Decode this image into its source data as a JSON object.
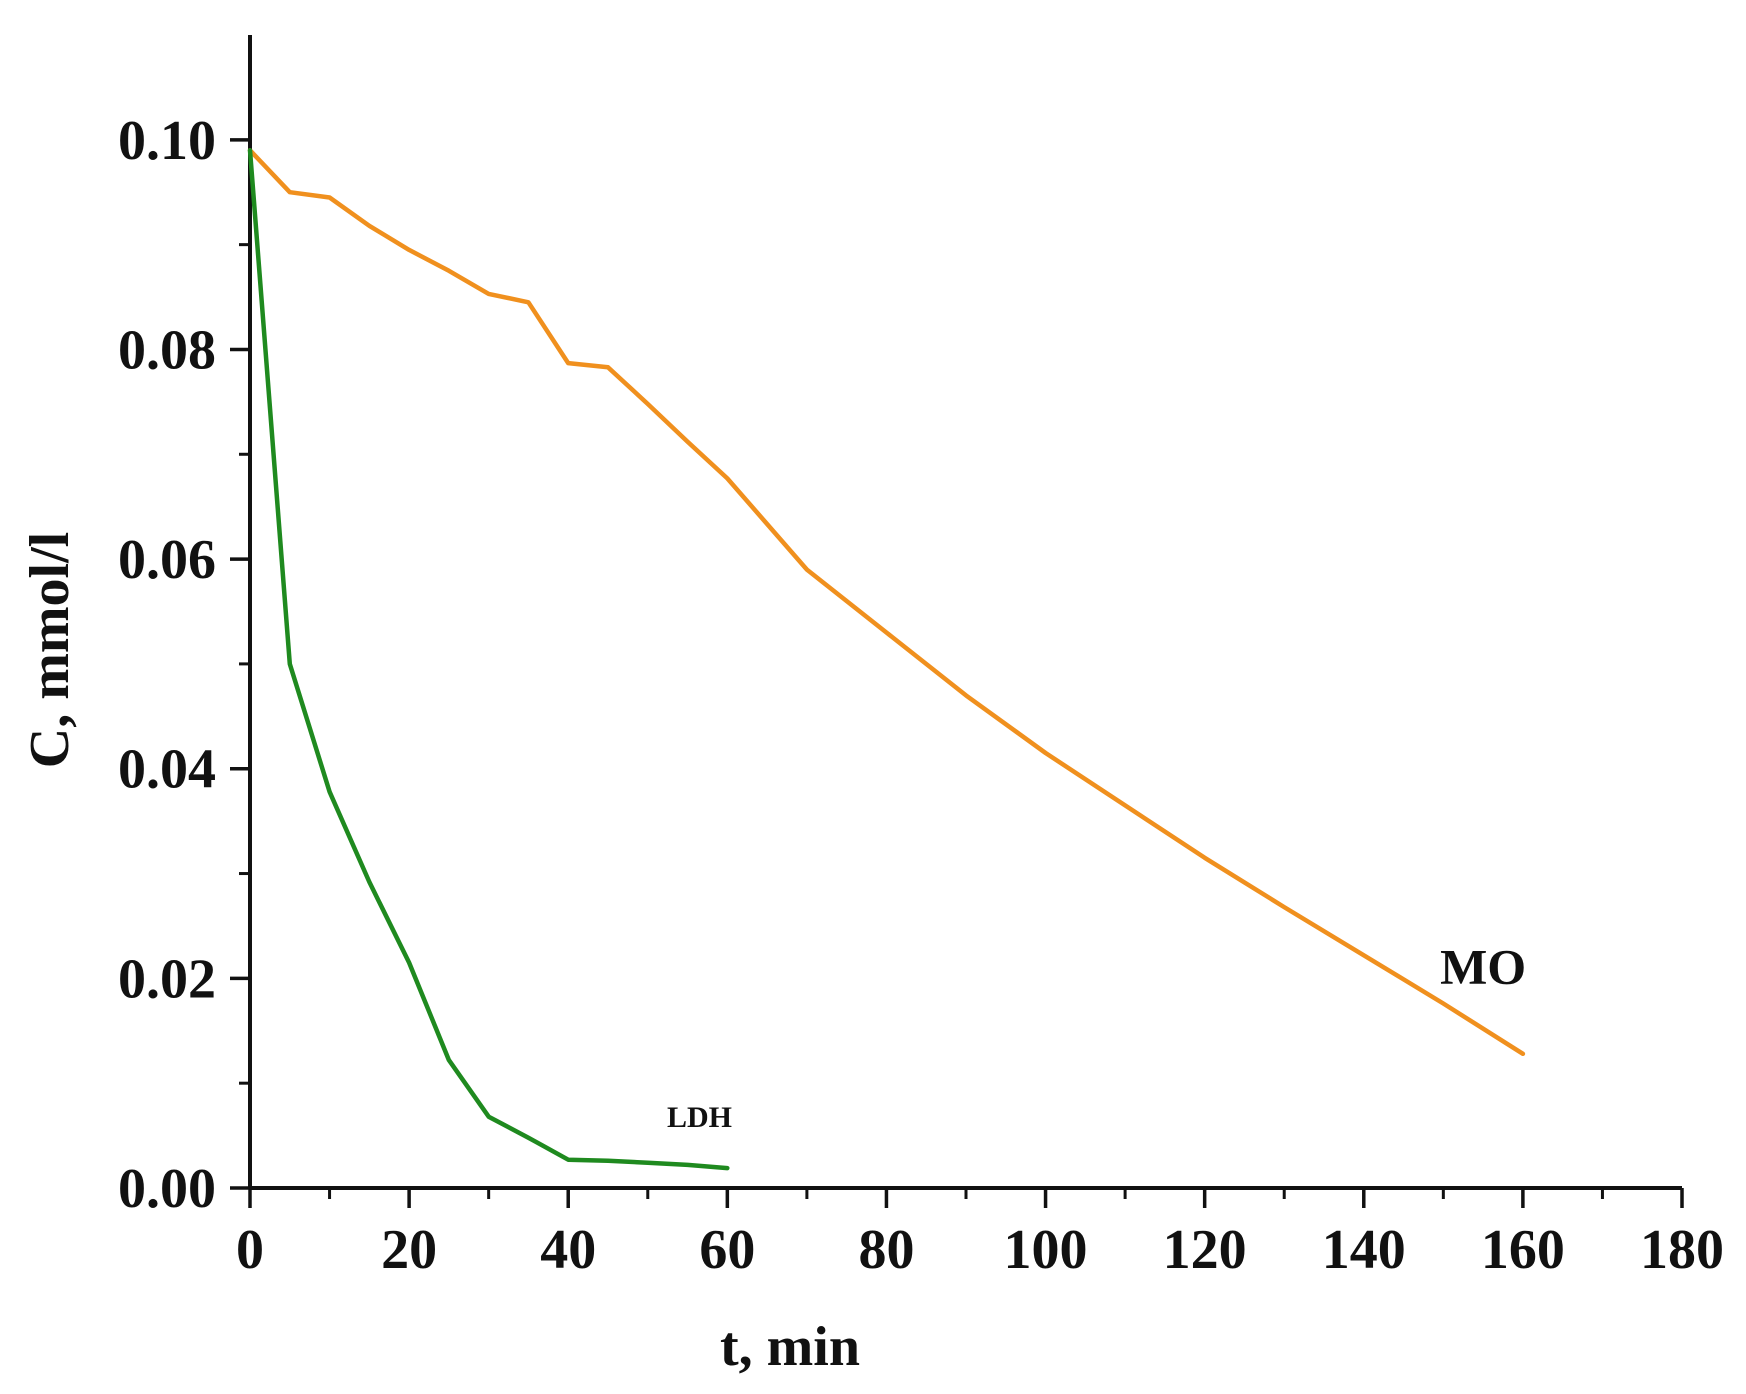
{
  "chart_data": {
    "type": "line",
    "title": "",
    "xlabel": "t, min",
    "ylabel": "C, mmol/l",
    "xlim": [
      0,
      180
    ],
    "ylim": [
      0,
      0.11
    ],
    "x_major_ticks": [
      0,
      20,
      40,
      60,
      80,
      100,
      120,
      140,
      160,
      180
    ],
    "x_tick_labels": [
      "0",
      "20",
      "40",
      "60",
      "80",
      "100",
      "120",
      "140",
      "160",
      "180"
    ],
    "x_minor_ticks": [
      10,
      30,
      50,
      70,
      90,
      110,
      130,
      150,
      170
    ],
    "y_major_ticks": [
      0,
      0.02,
      0.04,
      0.06,
      0.08,
      0.1
    ],
    "y_tick_labels": [
      "0.00",
      "0.02",
      "0.04",
      "0.06",
      "0.08",
      "0.10"
    ],
    "y_minor_ticks": [
      0.01,
      0.03,
      0.05,
      0.07,
      0.09
    ],
    "grid": false,
    "series": [
      {
        "name": "MO",
        "color": "#F0901E",
        "x": [
          0,
          5,
          10,
          15,
          20,
          25,
          30,
          35,
          40,
          45,
          50,
          55,
          60,
          70,
          80,
          90,
          100,
          110,
          120,
          130,
          140,
          150,
          160
        ],
        "y": [
          0.099,
          0.095,
          0.0945,
          0.0918,
          0.0895,
          0.0875,
          0.0853,
          0.0845,
          0.0787,
          0.0783,
          0.0748,
          0.0712,
          0.0677,
          0.059,
          0.053,
          0.047,
          0.0415,
          0.0365,
          0.0315,
          0.0268,
          0.0222,
          0.0176,
          0.0128
        ]
      },
      {
        "name": "LDH",
        "color": "#1F8A1F",
        "x": [
          0,
          5,
          10,
          15,
          20,
          25,
          30,
          35,
          40,
          45,
          50,
          55,
          60
        ],
        "y": [
          0.099,
          0.05,
          0.0378,
          0.0292,
          0.0215,
          0.0122,
          0.0068,
          0.0048,
          0.0027,
          0.0026,
          0.0024,
          0.0022,
          0.0019
        ]
      }
    ],
    "annotations": [
      {
        "text": "MO",
        "series": "MO"
      },
      {
        "text": "LDH",
        "series": "LDH"
      }
    ]
  }
}
